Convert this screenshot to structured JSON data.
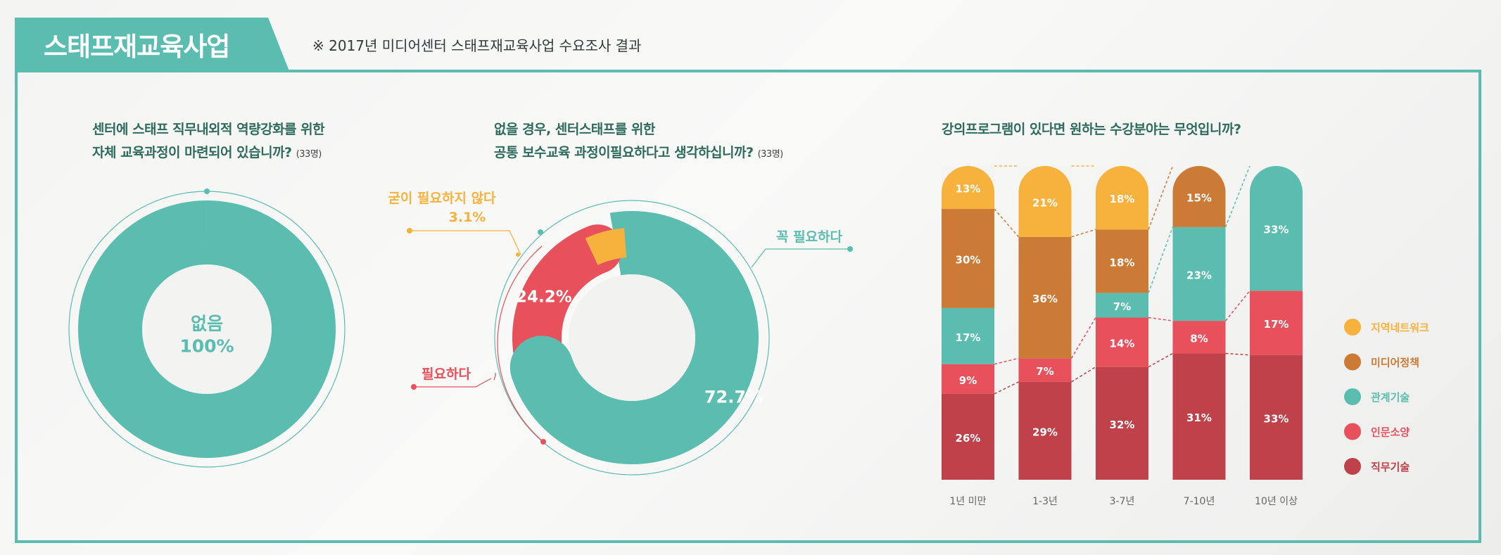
{
  "header": {
    "title": "스태프재교육사업",
    "subtitle": "※ 2017년 미디어센터 스태프재교육사업 수요조사 결과"
  },
  "colors": {
    "teal": "#5bbcb0",
    "red": "#e8505b",
    "orange": "#f7b23d",
    "brown": "#cc7b36",
    "darkred": "#bf4149"
  },
  "chart_data": [
    {
      "type": "pie",
      "question_line1": "센터에 스태프 직무내외적 역량강화를 위한",
      "question_line2": "자체 교육과정이 마련되어 있습니까?",
      "respondents": "(33명)",
      "slices": [
        {
          "label": "없음",
          "value_text": "100%",
          "value": 100,
          "color": "#5bbcb0"
        }
      ]
    },
    {
      "type": "pie",
      "question_line1": "없을 경우, 센터스태프를 위한",
      "question_line2": "공통 보수교육 과정이필요하다고 생각하십니까?",
      "respondents": "(33명)",
      "slices": [
        {
          "label": "꼭 필요하다",
          "value_text": "72.7%",
          "value": 72.7,
          "color": "#5bbcb0"
        },
        {
          "label": "필요하다",
          "value_text": "24.2%",
          "value": 24.2,
          "color": "#e8505b"
        },
        {
          "label": "굳이 필요하지 않다",
          "value_text": "3.1%",
          "value": 3.1,
          "color": "#f7b23d"
        }
      ]
    },
    {
      "type": "bar",
      "stacked": true,
      "question": "강의프로그램이 있다면 원하는 수강분야는 무엇입니까?",
      "categories": [
        "1년 미만",
        "1-3년",
        "3-7년",
        "7-10년",
        "10년 이상"
      ],
      "series": [
        {
          "name": "직무기술",
          "color": "#bf4149",
          "values": [
            26,
            29,
            32,
            31,
            33
          ],
          "labels": [
            "26%",
            "29%",
            "32%",
            "31%",
            "33%"
          ]
        },
        {
          "name": "인문소양",
          "color": "#e8505b",
          "values": [
            9,
            7,
            14,
            8,
            17
          ],
          "labels": [
            "9%",
            "7%",
            "14%",
            "8%",
            "17%"
          ]
        },
        {
          "name": "관계기술",
          "color": "#5bbcb0",
          "values": [
            17,
            0,
            7,
            23,
            33
          ],
          "labels": [
            "17%",
            "",
            "7%",
            "23%",
            "33%"
          ]
        },
        {
          "name": "미디어정책",
          "color": "#cc7b36",
          "values": [
            30,
            36,
            18,
            15,
            0
          ],
          "labels": [
            "30%",
            "36%",
            "18%",
            "15%",
            ""
          ]
        },
        {
          "name": "지역네트워크",
          "color": "#f7b23d",
          "values": [
            13,
            21,
            18,
            0,
            0
          ],
          "labels": [
            "13%",
            "21%",
            "18%",
            "",
            ""
          ]
        }
      ],
      "legend_order": [
        "지역네트워크",
        "미디어정책",
        "관계기술",
        "인문소양",
        "직무기술"
      ],
      "legend_position": "right"
    }
  ]
}
